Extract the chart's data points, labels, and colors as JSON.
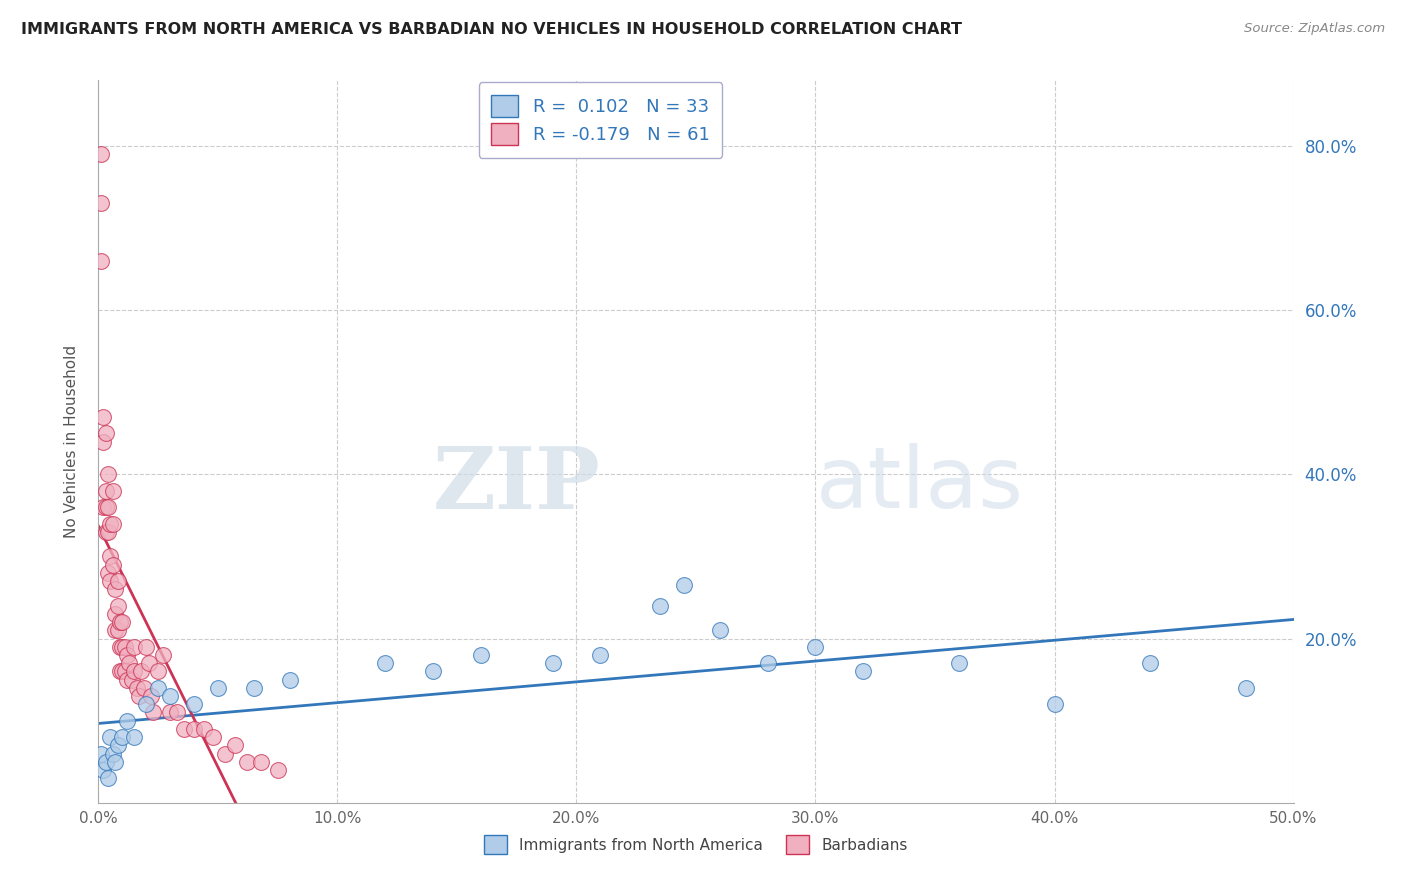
{
  "title": "IMMIGRANTS FROM NORTH AMERICA VS BARBADIAN NO VEHICLES IN HOUSEHOLD CORRELATION CHART",
  "source": "Source: ZipAtlas.com",
  "ylabel": "No Vehicles in Household",
  "watermark_zip": "ZIP",
  "watermark_atlas": "atlas",
  "legend_label_1": "Immigrants from North America",
  "legend_label_2": "Barbadians",
  "R1": 0.102,
  "N1": 33,
  "R2": -0.179,
  "N2": 61,
  "xlim": [
    0.0,
    0.5
  ],
  "ylim": [
    0.0,
    0.88
  ],
  "xticks": [
    0.0,
    0.1,
    0.2,
    0.3,
    0.4,
    0.5
  ],
  "yticks": [
    0.0,
    0.2,
    0.4,
    0.6,
    0.8
  ],
  "color_blue": "#b0cce8",
  "color_pink": "#f0b0c0",
  "line_blue": "#3377bb",
  "line_pink": "#cc3355",
  "background": "#ffffff",
  "grid_color": "#cccccc",
  "blue_x": [
    0.001,
    0.002,
    0.003,
    0.004,
    0.005,
    0.006,
    0.007,
    0.008,
    0.01,
    0.012,
    0.015,
    0.02,
    0.025,
    0.03,
    0.04,
    0.05,
    0.065,
    0.08,
    0.12,
    0.14,
    0.16,
    0.19,
    0.21,
    0.235,
    0.245,
    0.26,
    0.28,
    0.3,
    0.32,
    0.36,
    0.4,
    0.44,
    0.48
  ],
  "blue_y": [
    0.06,
    0.04,
    0.05,
    0.03,
    0.08,
    0.06,
    0.05,
    0.07,
    0.08,
    0.1,
    0.08,
    0.12,
    0.14,
    0.13,
    0.12,
    0.14,
    0.14,
    0.15,
    0.17,
    0.16,
    0.18,
    0.17,
    0.18,
    0.24,
    0.265,
    0.21,
    0.17,
    0.19,
    0.16,
    0.17,
    0.12,
    0.17,
    0.14
  ],
  "pink_x": [
    0.001,
    0.001,
    0.001,
    0.002,
    0.002,
    0.002,
    0.003,
    0.003,
    0.003,
    0.003,
    0.004,
    0.004,
    0.004,
    0.004,
    0.005,
    0.005,
    0.005,
    0.006,
    0.006,
    0.006,
    0.007,
    0.007,
    0.007,
    0.008,
    0.008,
    0.008,
    0.009,
    0.009,
    0.009,
    0.01,
    0.01,
    0.01,
    0.011,
    0.011,
    0.012,
    0.012,
    0.013,
    0.014,
    0.015,
    0.015,
    0.016,
    0.017,
    0.018,
    0.019,
    0.02,
    0.021,
    0.022,
    0.023,
    0.025,
    0.027,
    0.03,
    0.033,
    0.036,
    0.04,
    0.044,
    0.048,
    0.053,
    0.057,
    0.062,
    0.068,
    0.075
  ],
  "pink_y": [
    0.79,
    0.73,
    0.66,
    0.47,
    0.44,
    0.36,
    0.45,
    0.38,
    0.36,
    0.33,
    0.4,
    0.36,
    0.33,
    0.28,
    0.34,
    0.3,
    0.27,
    0.38,
    0.34,
    0.29,
    0.26,
    0.23,
    0.21,
    0.27,
    0.24,
    0.21,
    0.22,
    0.19,
    0.16,
    0.22,
    0.19,
    0.16,
    0.19,
    0.16,
    0.18,
    0.15,
    0.17,
    0.15,
    0.19,
    0.16,
    0.14,
    0.13,
    0.16,
    0.14,
    0.19,
    0.17,
    0.13,
    0.11,
    0.16,
    0.18,
    0.11,
    0.11,
    0.09,
    0.09,
    0.09,
    0.08,
    0.06,
    0.07,
    0.05,
    0.05,
    0.04
  ]
}
